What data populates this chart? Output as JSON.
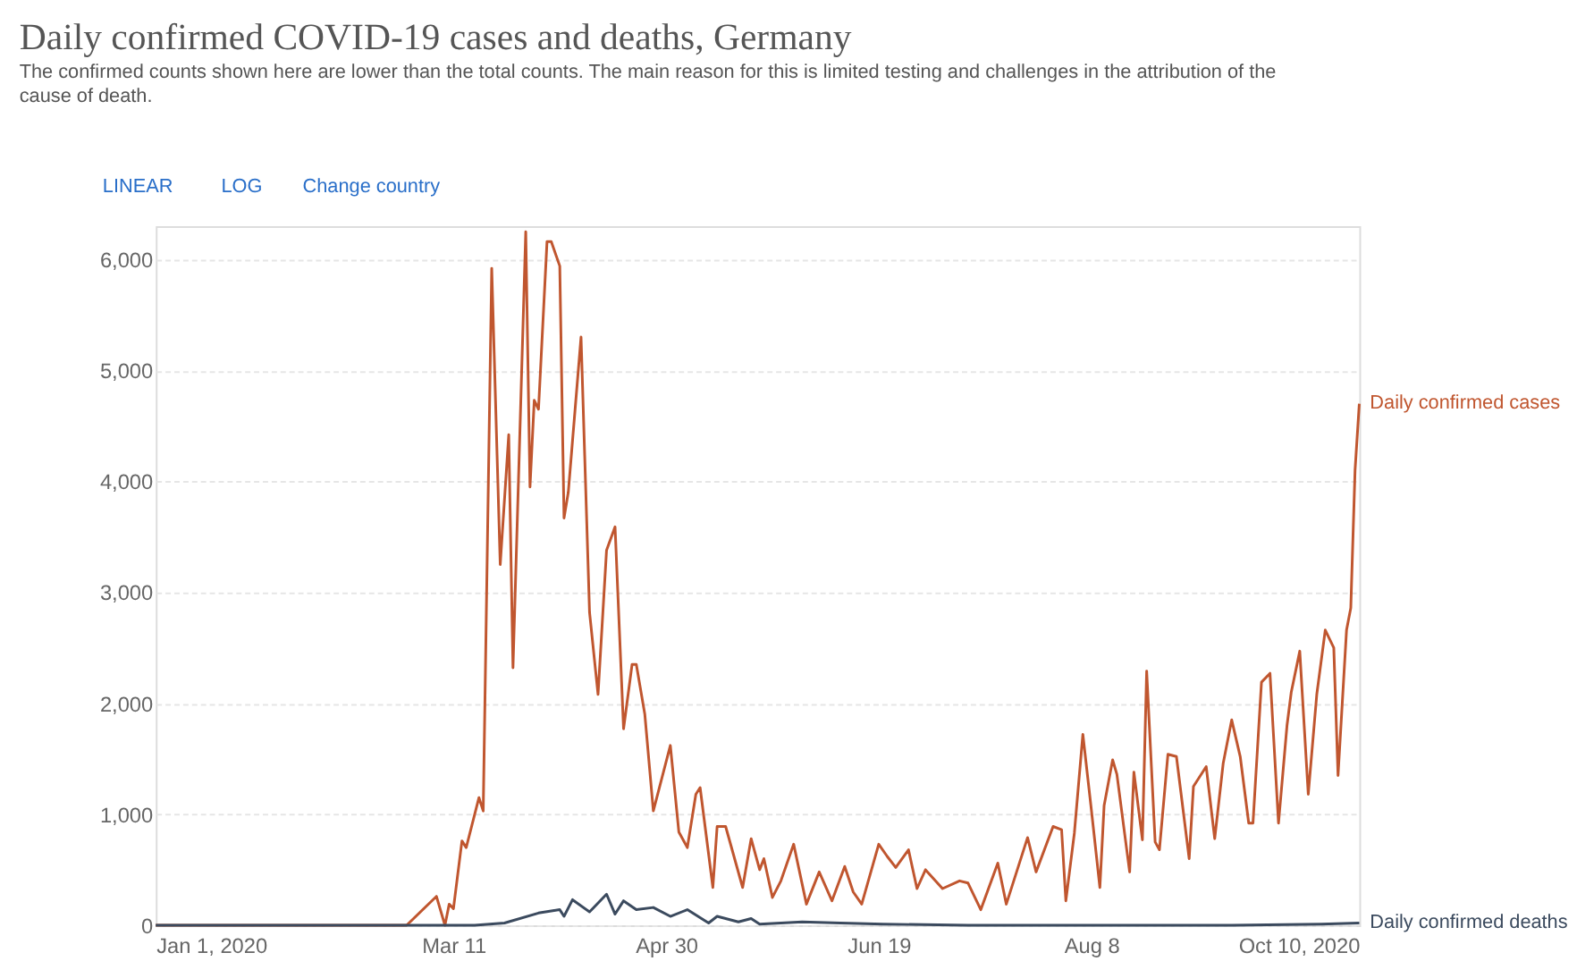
{
  "chart_data": {
    "type": "line",
    "title": "Daily confirmed COVID-19 cases and deaths, Germany",
    "subtitle": "The confirmed counts shown here are lower than the total counts. The main reason for this is limited testing and challenges in the attribution of the cause of death.",
    "annotations": [
      "LINEAR",
      "LOG",
      "Change country"
    ],
    "xlim": [
      "2020-01-01",
      "2020-10-10"
    ],
    "xticks": [
      {
        "value": "2020-01-01",
        "label": "Jan 1, 2020"
      },
      {
        "value": "2020-03-11",
        "label": "Mar 11"
      },
      {
        "value": "2020-04-30",
        "label": "Apr 30"
      },
      {
        "value": "2020-06-19",
        "label": "Jun 19"
      },
      {
        "value": "2020-08-08",
        "label": "Aug 8"
      },
      {
        "value": "2020-10-10",
        "label": "Oct 10, 2020"
      }
    ],
    "ylim": [
      0,
      6300
    ],
    "yticks": [
      0,
      {
        "value": 1000,
        "label": "1,000"
      },
      {
        "value": 2000,
        "label": "2,000"
      },
      {
        "value": 3000,
        "label": "3,000"
      },
      {
        "value": 4000,
        "label": "4,000"
      },
      {
        "value": 5000,
        "label": "5,000"
      },
      {
        "value": 6000,
        "label": "6,000"
      }
    ],
    "grid": "y",
    "legend": false,
    "marker": "none",
    "line_style": "solid",
    "series": [
      {
        "name": "Daily confirmed cases",
        "color": "#c0562f",
        "x": [
          "2020-01-01",
          "2020-02-29",
          "2020-03-07",
          "2020-03-09",
          "2020-03-10",
          "2020-03-11",
          "2020-03-13",
          "2020-03-14",
          "2020-03-17",
          "2020-03-18",
          "2020-03-20",
          "2020-03-22",
          "2020-03-24",
          "2020-03-25",
          "2020-03-28",
          "2020-03-29",
          "2020-03-30",
          "2020-03-31",
          "2020-04-02",
          "2020-04-03",
          "2020-04-05",
          "2020-04-06",
          "2020-04-07",
          "2020-04-10",
          "2020-04-12",
          "2020-04-14",
          "2020-04-16",
          "2020-04-18",
          "2020-04-20",
          "2020-04-22",
          "2020-04-23",
          "2020-04-25",
          "2020-04-27",
          "2020-05-01",
          "2020-05-03",
          "2020-05-05",
          "2020-05-07",
          "2020-05-08",
          "2020-05-11",
          "2020-05-12",
          "2020-05-14",
          "2020-05-18",
          "2020-05-20",
          "2020-05-22",
          "2020-05-23",
          "2020-05-25",
          "2020-05-27",
          "2020-05-30",
          "2020-06-02",
          "2020-06-05",
          "2020-06-08",
          "2020-06-11",
          "2020-06-13",
          "2020-06-15",
          "2020-06-19",
          "2020-06-21",
          "2020-06-23",
          "2020-06-26",
          "2020-06-28",
          "2020-06-30",
          "2020-07-04",
          "2020-07-08",
          "2020-07-10",
          "2020-07-13",
          "2020-07-17",
          "2020-07-19",
          "2020-07-24",
          "2020-07-26",
          "2020-07-30",
          "2020-08-01",
          "2020-08-02",
          "2020-08-04",
          "2020-08-06",
          "2020-08-08",
          "2020-08-10",
          "2020-08-11",
          "2020-08-13",
          "2020-08-14",
          "2020-08-17",
          "2020-08-18",
          "2020-08-20",
          "2020-08-21",
          "2020-08-23",
          "2020-08-24",
          "2020-08-26",
          "2020-08-28",
          "2020-08-31",
          "2020-09-01",
          "2020-09-04",
          "2020-09-06",
          "2020-09-08",
          "2020-09-10",
          "2020-09-12",
          "2020-09-14",
          "2020-09-15",
          "2020-09-17",
          "2020-09-19",
          "2020-09-21",
          "2020-09-23",
          "2020-09-24",
          "2020-09-26",
          "2020-09-28",
          "2020-09-30",
          "2020-10-02",
          "2020-10-04",
          "2020-10-05",
          "2020-10-07",
          "2020-10-08",
          "2020-10-09",
          "2020-10-10"
        ],
        "values": [
          0,
          0,
          260,
          0,
          190,
          150,
          760,
          700,
          1150,
          1030,
          5920,
          3250,
          4420,
          2320,
          6250,
          3950,
          4730,
          4650,
          6160,
          6160,
          5940,
          3670,
          3900,
          5300,
          2820,
          2080,
          3380,
          3590,
          1770,
          2350,
          2350,
          1900,
          1030,
          1620,
          840,
          700,
          1180,
          1240,
          340,
          890,
          890,
          340,
          780,
          500,
          600,
          250,
          400,
          730,
          190,
          480,
          220,
          530,
          300,
          190,
          730,
          620,
          520,
          680,
          330,
          500,
          330,
          400,
          380,
          140,
          560,
          190,
          790,
          480,
          890,
          860,
          220,
          830,
          1720,
          1040,
          340,
          1080,
          1490,
          1360,
          480,
          1380,
          770,
          2290,
          750,
          680,
          1540,
          1520,
          600,
          1250,
          1430,
          780,
          1460,
          1850,
          1520,
          920,
          920,
          2190,
          2270,
          920,
          1800,
          2100,
          2470,
          1180,
          2080,
          2660,
          2500,
          1350,
          2660,
          2860,
          4100,
          4700
        ]
      },
      {
        "name": "Daily confirmed deaths",
        "color": "#3b4a5e",
        "x": [
          "2020-01-01",
          "2020-03-16",
          "2020-03-23",
          "2020-03-31",
          "2020-04-05",
          "2020-04-06",
          "2020-04-08",
          "2020-04-12",
          "2020-04-16",
          "2020-04-18",
          "2020-04-20",
          "2020-04-23",
          "2020-04-27",
          "2020-05-01",
          "2020-05-05",
          "2020-05-10",
          "2020-05-12",
          "2020-05-17",
          "2020-05-20",
          "2020-05-22",
          "2020-06-01",
          "2020-06-10",
          "2020-06-20",
          "2020-07-10",
          "2020-08-10",
          "2020-09-10",
          "2020-10-01",
          "2020-10-10"
        ],
        "values": [
          0,
          0,
          20,
          110,
          140,
          80,
          230,
          120,
          280,
          100,
          220,
          140,
          160,
          80,
          140,
          20,
          80,
          30,
          60,
          10,
          30,
          20,
          10,
          0,
          0,
          0,
          10,
          20
        ]
      }
    ]
  }
}
